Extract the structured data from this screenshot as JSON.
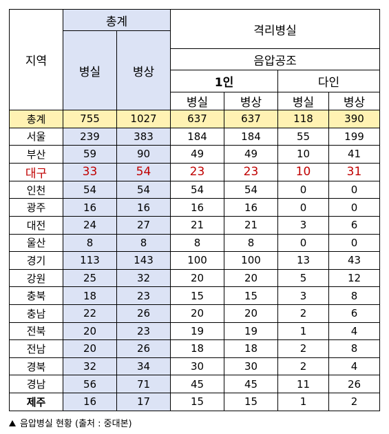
{
  "headers": {
    "region": "지역",
    "total": "총계",
    "total_room": "병실",
    "total_bed": "병상",
    "isolation": "격리병실",
    "negative": "음압공조",
    "single": "1인",
    "multi": "다인",
    "single_room": "병실",
    "single_bed": "병상",
    "multi_room": "병실",
    "multi_bed": "병상"
  },
  "rows": [
    {
      "region": "총계",
      "total_room": "755",
      "total_bed": "1027",
      "single_room": "637",
      "single_bed": "637",
      "multi_room": "118",
      "multi_bed": "390"
    },
    {
      "region": "서울",
      "total_room": "239",
      "total_bed": "383",
      "single_room": "184",
      "single_bed": "184",
      "multi_room": "55",
      "multi_bed": "199"
    },
    {
      "region": "부산",
      "total_room": "59",
      "total_bed": "90",
      "single_room": "49",
      "single_bed": "49",
      "multi_room": "10",
      "multi_bed": "41"
    },
    {
      "region": "대구",
      "total_room": "33",
      "total_bed": "54",
      "single_room": "23",
      "single_bed": "23",
      "multi_room": "10",
      "multi_bed": "31"
    },
    {
      "region": "인천",
      "total_room": "54",
      "total_bed": "54",
      "single_room": "54",
      "single_bed": "54",
      "multi_room": "0",
      "multi_bed": "0"
    },
    {
      "region": "광주",
      "total_room": "16",
      "total_bed": "16",
      "single_room": "16",
      "single_bed": "16",
      "multi_room": "0",
      "multi_bed": "0"
    },
    {
      "region": "대전",
      "total_room": "24",
      "total_bed": "27",
      "single_room": "21",
      "single_bed": "21",
      "multi_room": "3",
      "multi_bed": "6"
    },
    {
      "region": "울산",
      "total_room": "8",
      "total_bed": "8",
      "single_room": "8",
      "single_bed": "8",
      "multi_room": "0",
      "multi_bed": "0"
    },
    {
      "region": "경기",
      "total_room": "113",
      "total_bed": "143",
      "single_room": "100",
      "single_bed": "100",
      "multi_room": "13",
      "multi_bed": "43"
    },
    {
      "region": "강원",
      "total_room": "25",
      "total_bed": "32",
      "single_room": "20",
      "single_bed": "20",
      "multi_room": "5",
      "multi_bed": "12"
    },
    {
      "region": "충북",
      "total_room": "18",
      "total_bed": "23",
      "single_room": "15",
      "single_bed": "15",
      "multi_room": "3",
      "multi_bed": "8"
    },
    {
      "region": "충남",
      "total_room": "22",
      "total_bed": "26",
      "single_room": "20",
      "single_bed": "20",
      "multi_room": "2",
      "multi_bed": "6"
    },
    {
      "region": "전북",
      "total_room": "20",
      "total_bed": "23",
      "single_room": "19",
      "single_bed": "19",
      "multi_room": "1",
      "multi_bed": "4"
    },
    {
      "region": "전남",
      "total_room": "20",
      "total_bed": "26",
      "single_room": "18",
      "single_bed": "18",
      "multi_room": "2",
      "multi_bed": "8"
    },
    {
      "region": "경북",
      "total_room": "32",
      "total_bed": "34",
      "single_room": "30",
      "single_bed": "30",
      "multi_room": "2",
      "multi_bed": "4"
    },
    {
      "region": "경남",
      "total_room": "56",
      "total_bed": "71",
      "single_room": "45",
      "single_bed": "45",
      "multi_room": "11",
      "multi_bed": "26"
    },
    {
      "region": "제주",
      "total_room": "16",
      "total_bed": "17",
      "single_room": "15",
      "single_bed": "15",
      "multi_room": "1",
      "multi_bed": "2"
    }
  ],
  "caption": "음압병실 현황   (출처 : 중대본)",
  "colors": {
    "header_blue": "#dce3f5",
    "total_yellow": "#fff2b3",
    "highlight_red": "#c00000"
  }
}
